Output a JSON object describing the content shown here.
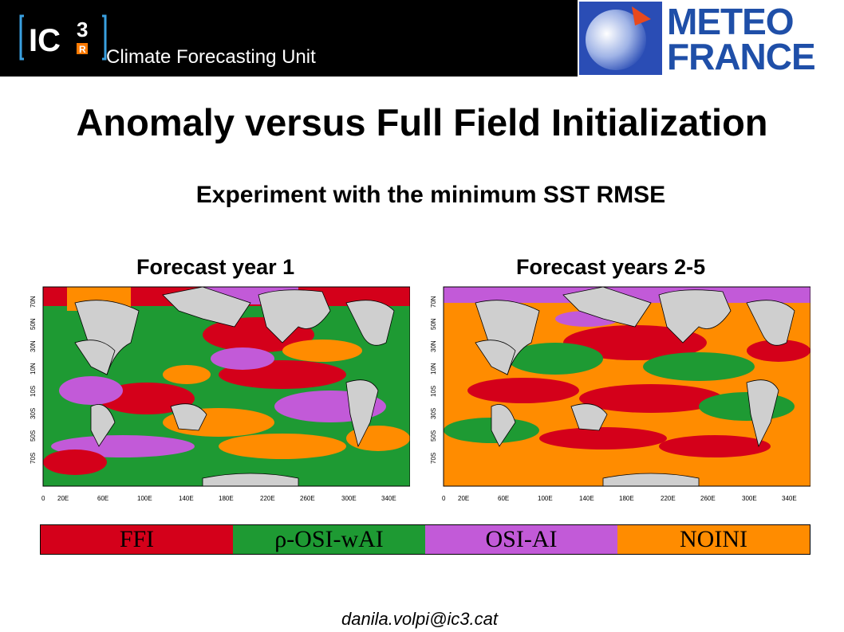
{
  "header": {
    "logo_text": "IC3",
    "unit_name": "Climate Forecasting Unit",
    "partner_logo": {
      "line1": "METEO",
      "line2": "FRANCE"
    }
  },
  "title": "Anomaly versus Full Field Initialization",
  "subtitle": "Experiment with  the minimum SST RMSE",
  "panels": [
    {
      "title": "Forecast year 1"
    },
    {
      "title": "Forecast years 2-5"
    }
  ],
  "map_axes": {
    "lat_labels": [
      "70N",
      "50N",
      "30N",
      "10N",
      "10S",
      "30S",
      "50S",
      "70S"
    ],
    "lon_labels": [
      "0",
      "20E",
      "60E",
      "100E",
      "140E",
      "180E",
      "220E",
      "260E",
      "300E",
      "340E"
    ]
  },
  "legend": [
    {
      "label": "FFI",
      "color": "#d4001a"
    },
    {
      "label": "ρ-OSI-wAI",
      "color": "#1e9a33"
    },
    {
      "label": "OSI-AI",
      "color": "#c25ad8"
    },
    {
      "label": "NOINI",
      "color": "#ff8c00"
    }
  ],
  "email": "danila.volpi@ic3.cat"
}
